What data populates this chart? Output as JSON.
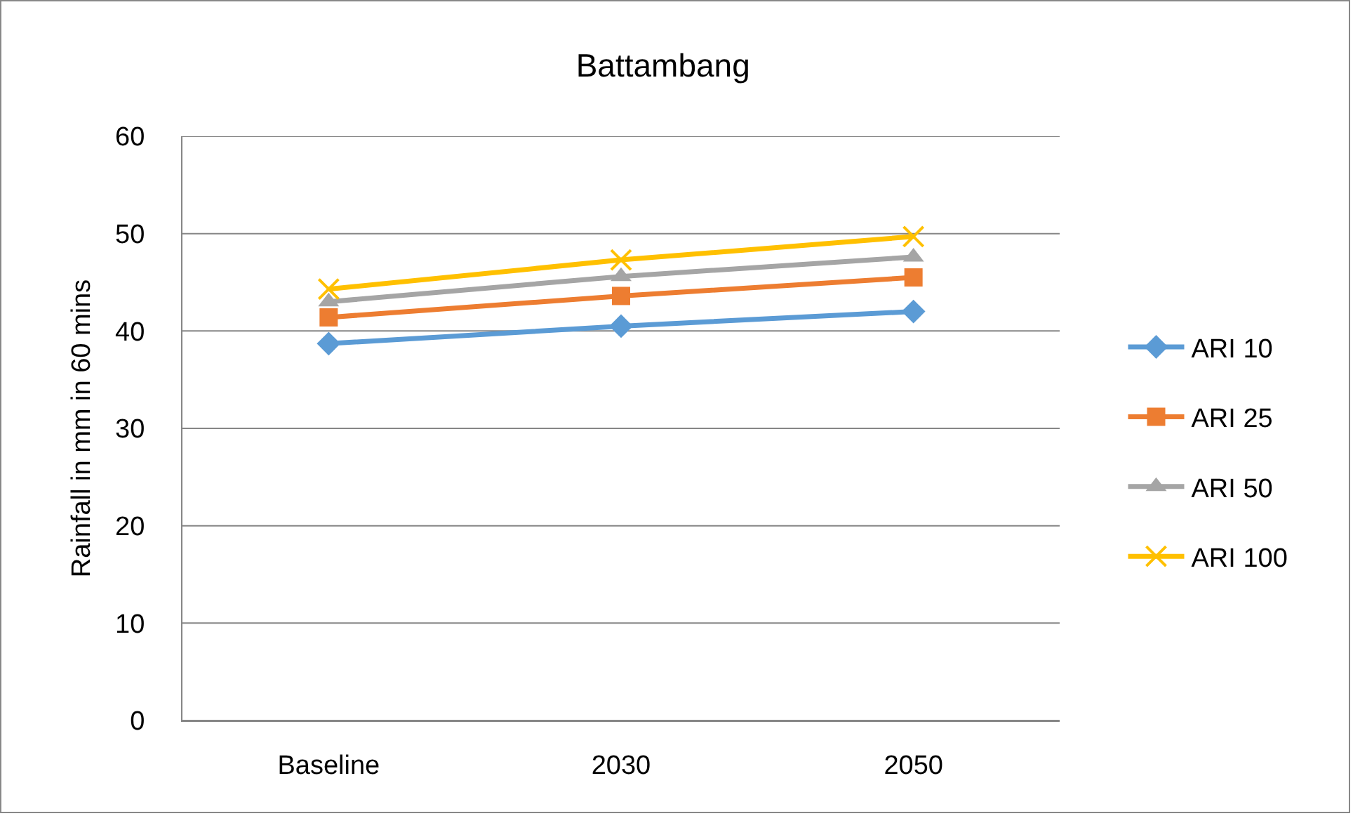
{
  "chart_data": {
    "type": "line",
    "title": "Battambang",
    "ylabel": "Rainfall in mm in 60 mins",
    "categories": [
      "Baseline",
      "2030",
      "2050"
    ],
    "series": [
      {
        "name": "ARI 10",
        "color": "#5b9bd5",
        "marker": "diamond",
        "values": [
          38.7,
          40.5,
          42.0
        ]
      },
      {
        "name": "ARI 25",
        "color": "#ed7d31",
        "marker": "square",
        "values": [
          41.4,
          43.6,
          45.5
        ]
      },
      {
        "name": "ARI 50",
        "color": "#a5a5a5",
        "marker": "triangle",
        "values": [
          43.0,
          45.6,
          47.6
        ]
      },
      {
        "name": "ARI 100",
        "color": "#ffc000",
        "marker": "cross",
        "values": [
          44.3,
          47.3,
          49.7
        ]
      }
    ],
    "ylim": [
      0,
      60
    ],
    "yticks": [
      0,
      10,
      20,
      30,
      40,
      50,
      60
    ],
    "grid": "y",
    "legend": "right",
    "line_style": "solid"
  }
}
